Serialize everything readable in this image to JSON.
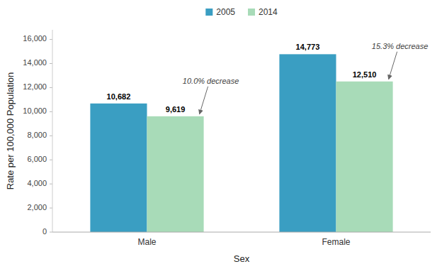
{
  "chart_data": {
    "type": "bar",
    "categories": [
      "Male",
      "Female"
    ],
    "series": [
      {
        "name": "2005",
        "color": "#3a9ec2",
        "values": [
          10682,
          14773
        ],
        "value_labels": [
          "10,682",
          "14,773"
        ]
      },
      {
        "name": "2014",
        "color": "#a8dbb8",
        "values": [
          9619,
          12510
        ],
        "value_labels": [
          "9,619",
          "12,510"
        ]
      }
    ],
    "x_label": "Sex",
    "y_label": "Rate per 100,000 Population",
    "ylim": [
      0,
      16800
    ],
    "yticks": [
      0,
      {
        "value": 2000,
        "label": "2,000"
      },
      {
        "value": 4000,
        "label": "4,000"
      },
      {
        "value": 6000,
        "label": "6,000"
      },
      {
        "value": 8000,
        "label": "8,000"
      },
      {
        "value": 10000,
        "label": "10,000"
      },
      {
        "value": 12000,
        "label": "12,000"
      },
      {
        "value": 14000,
        "label": "14,000"
      },
      {
        "value": 16000,
        "label": "16,000"
      }
    ],
    "annotations": [
      "10.0% decrease",
      "15.3% decrease"
    ],
    "legend": "top",
    "grid": false,
    "data_labels": true
  }
}
